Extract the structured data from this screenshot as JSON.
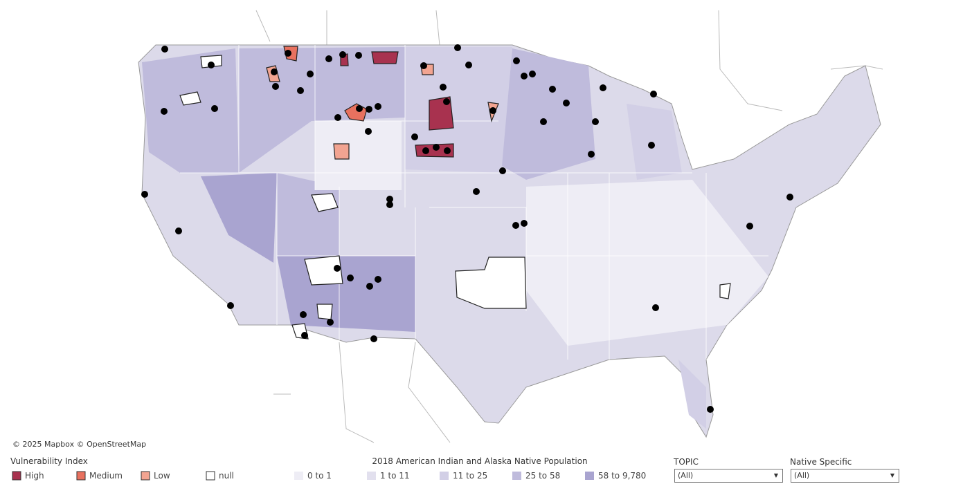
{
  "attribution": "© 2025 Mapbox © OpenStreetMap",
  "vulnerability_legend": {
    "title": "Vulnerability  Index",
    "items": [
      {
        "label": "High",
        "color": "#a8324f"
      },
      {
        "label": "Medium",
        "color": "#e8715f"
      },
      {
        "label": "Low",
        "color": "#f2a491"
      },
      {
        "label": "null",
        "color": "#ffffff"
      }
    ]
  },
  "population_legend": {
    "title": "2018 American Indian and Alaska Native Population",
    "items": [
      {
        "label": "0 to 1",
        "color": "#eeedf5"
      },
      {
        "label": "1 to 11",
        "color": "#e2e0ee"
      },
      {
        "label": "11 to 25",
        "color": "#d2cfe6"
      },
      {
        "label": "25 to 58",
        "color": "#bfbbdc"
      },
      {
        "label": "58 to 9,780",
        "color": "#a9a4d0"
      }
    ]
  },
  "filters": [
    {
      "label": "TOPIC",
      "value": "(All)"
    },
    {
      "label": "Native Specific",
      "value": "(All)"
    }
  ]
}
